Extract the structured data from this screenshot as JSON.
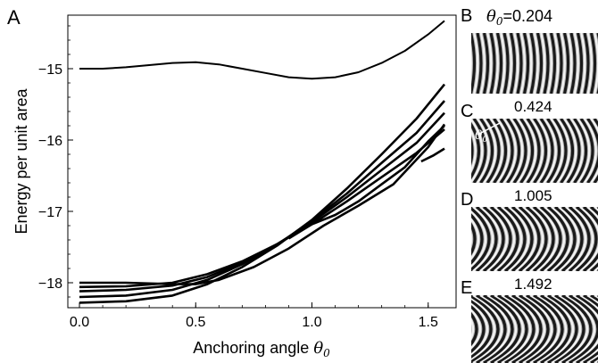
{
  "chart_data": {
    "type": "line",
    "panel_label": "A",
    "xlabel": "Anchoring angle",
    "xlabel_symbol": "θ",
    "xlabel_subscript": "0",
    "ylabel": "Energy per unit area",
    "xlim": [
      -0.05,
      1.62
    ],
    "ylim": [
      -18.35,
      -14.25
    ],
    "x_ticks": [
      0.0,
      0.5,
      1.0,
      1.5
    ],
    "x_tick_labels": [
      "0.0",
      "0.5",
      "1.0",
      "1.5"
    ],
    "y_ticks": [
      -18,
      -17,
      -16,
      -15
    ],
    "y_tick_labels": [
      "−18",
      "−17",
      "−16",
      "−15"
    ],
    "grid": false,
    "series": [
      {
        "x": [
          0.0,
          0.1,
          0.2,
          0.3,
          0.4,
          0.5,
          0.6,
          0.7,
          0.8,
          0.9,
          1.0,
          1.1,
          1.2,
          1.3,
          1.4,
          1.5,
          1.57
        ],
        "y": [
          -15.0,
          -15.0,
          -14.98,
          -14.95,
          -14.92,
          -14.91,
          -14.94,
          -15.0,
          -15.06,
          -15.12,
          -15.14,
          -15.12,
          -15.05,
          -14.92,
          -14.75,
          -14.52,
          -14.33
        ]
      },
      {
        "x": [
          0.0,
          0.2,
          0.4,
          0.55,
          0.7,
          0.85,
          1.0,
          1.15,
          1.3,
          1.45,
          1.57
        ],
        "y": [
          -18.28,
          -18.26,
          -18.18,
          -18.02,
          -17.78,
          -17.48,
          -17.12,
          -16.68,
          -16.2,
          -15.7,
          -15.22
        ]
      },
      {
        "x": [
          0.0,
          0.2,
          0.4,
          0.55,
          0.7,
          0.85,
          1.0,
          1.15,
          1.3,
          1.45,
          1.57
        ],
        "y": [
          -18.2,
          -18.18,
          -18.1,
          -17.96,
          -17.74,
          -17.47,
          -17.13,
          -16.75,
          -16.32,
          -15.9,
          -15.45
        ]
      },
      {
        "x": [
          0.0,
          0.2,
          0.4,
          0.55,
          0.7,
          0.85,
          1.0,
          1.15,
          1.3,
          1.45,
          1.57
        ],
        "y": [
          -18.12,
          -18.1,
          -18.04,
          -17.92,
          -17.72,
          -17.46,
          -17.15,
          -16.8,
          -16.42,
          -16.04,
          -15.62
        ]
      },
      {
        "x": [
          0.0,
          0.2,
          0.4,
          0.55,
          0.7,
          0.85,
          1.0,
          1.15,
          1.3,
          1.45,
          1.57
        ],
        "y": [
          -18.06,
          -18.05,
          -18.0,
          -17.88,
          -17.7,
          -17.46,
          -17.18,
          -16.86,
          -16.52,
          -16.18,
          -15.85
        ]
      },
      {
        "x": [
          0.0,
          0.2,
          0.4,
          0.5,
          0.6,
          0.75,
          0.9,
          1.05,
          1.2,
          1.35,
          1.5,
          1.57
        ],
        "y": [
          -18.0,
          -18.0,
          -18.02,
          -18.02,
          -17.96,
          -17.78,
          -17.52,
          -17.2,
          -16.92,
          -16.62,
          -16.1,
          -15.78
        ]
      },
      {
        "x": [
          0.9,
          1.0,
          1.1,
          1.2,
          1.3,
          1.4,
          1.5,
          1.57
        ],
        "y": [
          -17.38,
          -17.18,
          -17.05,
          -16.86,
          -16.62,
          -16.38,
          -16.02,
          -15.8
        ]
      },
      {
        "x": [
          1.47,
          1.52,
          1.57
        ],
        "y": [
          -16.3,
          -16.22,
          -16.12
        ]
      }
    ]
  },
  "panels": [
    {
      "label": "B",
      "value_prefix": "θ",
      "value_sub": "0",
      "value": "=0.204",
      "thumb_color": "#9a9a9a"
    },
    {
      "label": "C",
      "value_prefix": "",
      "value_sub": "",
      "value": "0.424",
      "thumb_color": "#9a9a9a",
      "annotation": "θ",
      "annotation_sub": "0"
    },
    {
      "label": "D",
      "value_prefix": "",
      "value_sub": "",
      "value": "1.005",
      "thumb_color": "#9a9a9a"
    },
    {
      "label": "E",
      "value_prefix": "",
      "value_sub": "",
      "value": "1.492",
      "thumb_color": "#9a9a9a"
    }
  ]
}
